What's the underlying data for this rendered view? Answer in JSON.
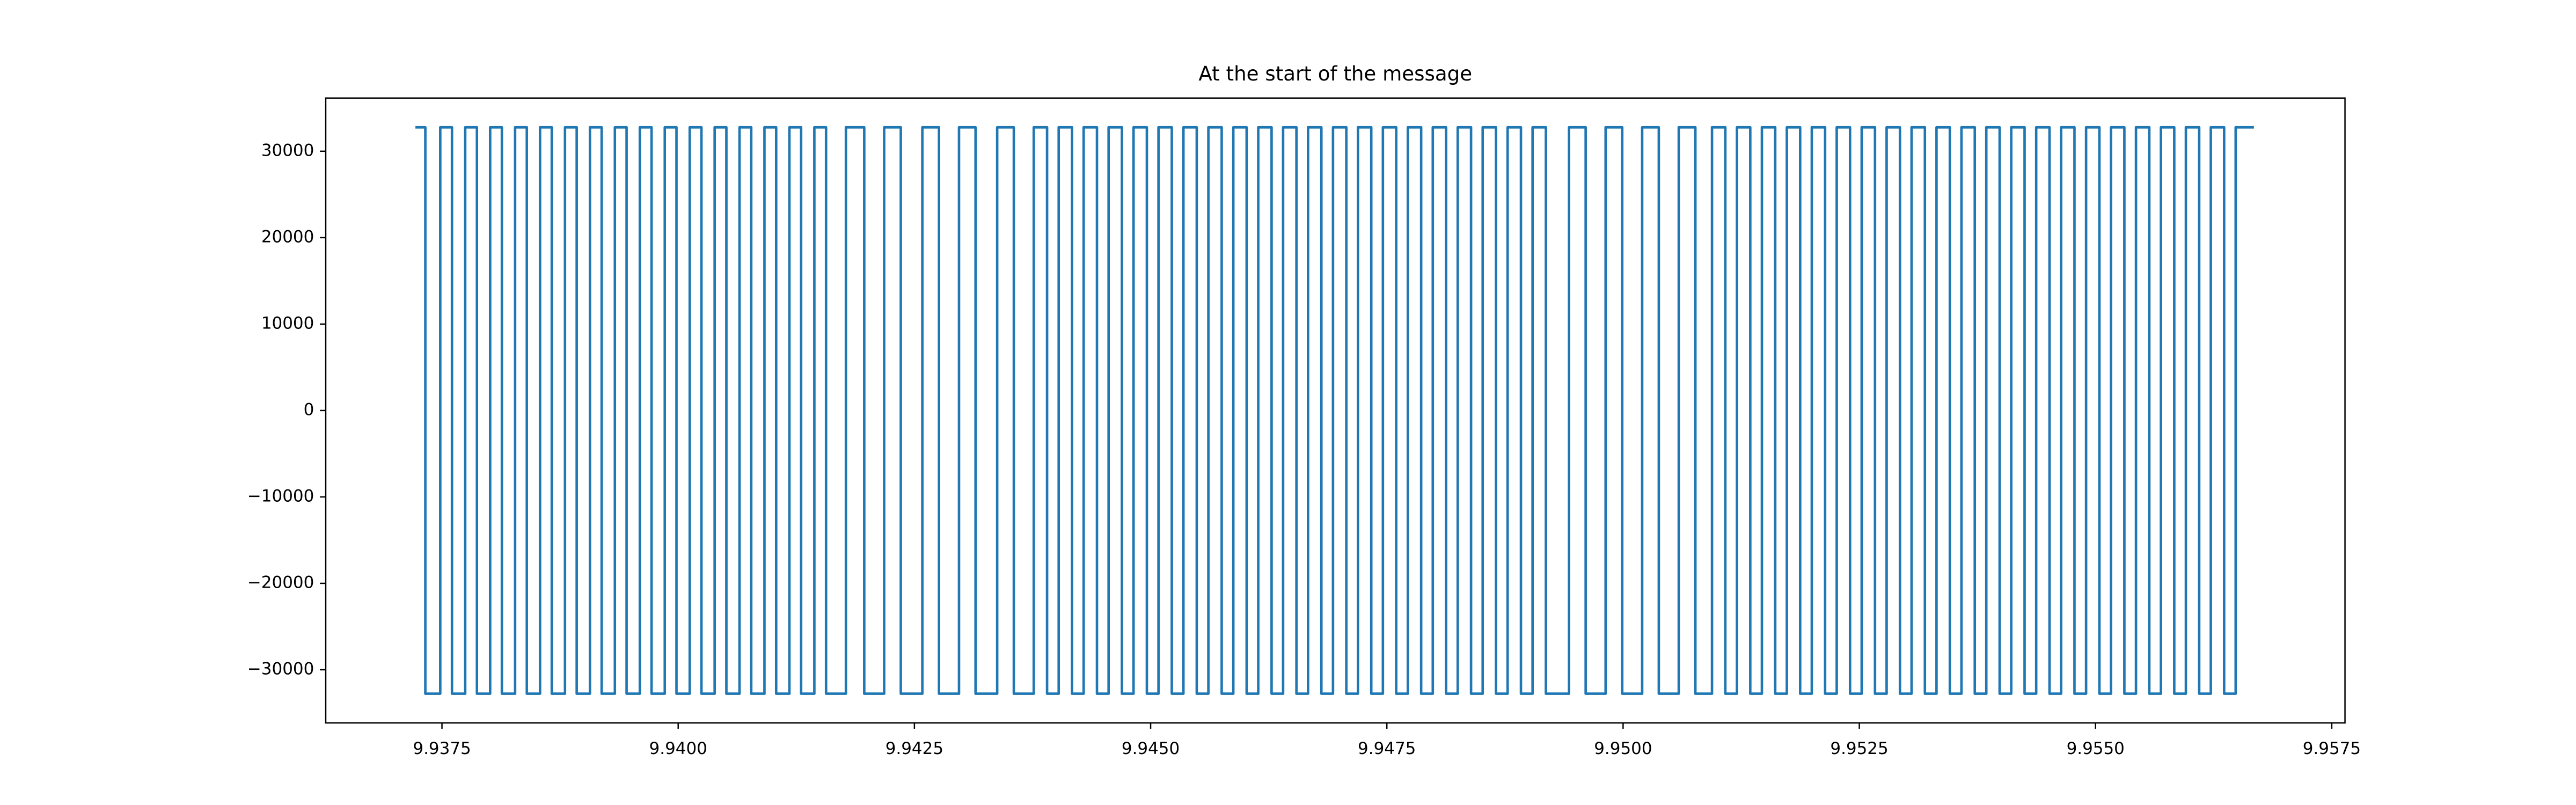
{
  "chart_data": {
    "type": "line",
    "title": "At the start of the message",
    "drawstyle": "steps-post",
    "xlim": [
      9.93627,
      9.95764
    ],
    "ylim": [
      -36154,
      36154
    ],
    "xticks": [
      9.9375,
      {
        "value": 9.94,
        "label": "9.9400"
      },
      9.9425,
      {
        "value": 9.945,
        "label": "9.9450"
      },
      9.9475,
      {
        "value": 9.95,
        "label": "9.9500"
      },
      9.9525,
      {
        "value": 9.955,
        "label": "9.9550"
      },
      9.9575
    ],
    "yticks": [
      {
        "value": -30000,
        "label": "−30000"
      },
      {
        "value": -20000,
        "label": "−20000"
      },
      {
        "value": -10000,
        "label": "−10000"
      },
      0,
      10000,
      20000,
      30000
    ],
    "grid": false,
    "series": [
      {
        "color": "#1f77b4",
        "x": [
          9.937219,
          9.937324,
          9.937482,
          9.937606,
          9.937746,
          9.93787,
          9.93801,
          9.938134,
          9.938274,
          9.938398,
          9.938538,
          9.938662,
          9.938802,
          9.938926,
          9.939066,
          9.93919,
          9.93933,
          9.939454,
          9.939594,
          9.939718,
          9.939858,
          9.939982,
          9.940122,
          9.940246,
          9.940386,
          9.94051,
          9.940649,
          9.940773,
          9.940913,
          9.941037,
          9.941177,
          9.941301,
          9.941441,
          9.941565,
          9.941775,
          9.941969,
          9.94218,
          9.942356,
          9.942584,
          9.94276,
          9.942972,
          9.943147,
          9.943376,
          9.943552,
          9.943763,
          9.943904,
          9.944027,
          9.944168,
          9.944291,
          9.944432,
          9.944555,
          9.944696,
          9.944819,
          9.94496,
          9.945083,
          9.945224,
          9.945347,
          9.945488,
          9.945611,
          9.945752,
          9.945875,
          9.946016,
          9.946139,
          9.94628,
          9.946402,
          9.946543,
          9.946666,
          9.946807,
          9.94693,
          9.947071,
          9.947194,
          9.947335,
          9.947458,
          9.947599,
          9.947722,
          9.947863,
          9.947986,
          9.948127,
          9.94825,
          9.948391,
          9.948514,
          9.948655,
          9.948778,
          9.948919,
          9.949042,
          9.949183,
          9.949428,
          9.949604,
          9.949815,
          9.949991,
          9.950202,
          9.950378,
          9.950589,
          9.950765,
          9.950941,
          9.951082,
          9.951205,
          9.951346,
          9.951469,
          9.95161,
          9.951733,
          9.951874,
          9.951997,
          9.952138,
          9.952261,
          9.952402,
          9.952525,
          9.952666,
          9.952789,
          9.95293,
          9.953053,
          9.953194,
          9.953317,
          9.953458,
          9.953581,
          9.953722,
          9.953844,
          9.953985,
          9.954108,
          9.954249,
          9.954372,
          9.954513,
          9.954636,
          9.954777,
          9.9549,
          9.955041,
          9.955164,
          9.955305,
          9.955428,
          9.955569,
          9.955692,
          9.955833,
          9.955956,
          9.956097,
          9.95622,
          9.956361,
          9.956483,
          9.956676
        ],
        "values": [
          32767,
          -32768,
          32767,
          -32768,
          32767,
          -32768,
          32767,
          -32768,
          32767,
          -32768,
          32767,
          -32768,
          32767,
          -32768,
          32767,
          -32768,
          32767,
          -32768,
          32767,
          -32768,
          32767,
          -32768,
          32767,
          -32768,
          32767,
          -32768,
          32767,
          -32768,
          32767,
          -32768,
          32767,
          -32768,
          32767,
          -32768,
          32767,
          -32768,
          32767,
          -32768,
          32767,
          -32768,
          32767,
          -32768,
          32767,
          -32768,
          32767,
          -32768,
          32767,
          -32768,
          32767,
          -32768,
          32767,
          -32768,
          32767,
          -32768,
          32767,
          -32768,
          32767,
          -32768,
          32767,
          -32768,
          32767,
          -32768,
          32767,
          -32768,
          32767,
          -32768,
          32767,
          -32768,
          32767,
          -32768,
          32767,
          -32768,
          32767,
          -32768,
          32767,
          -32768,
          32767,
          -32768,
          32767,
          -32768,
          32767,
          -32768,
          32767,
          -32768,
          32767,
          -32768,
          32767,
          -32768,
          32767,
          -32768,
          32767,
          -32768,
          32767,
          -32768,
          32767,
          -32768,
          32767,
          -32768,
          32767,
          -32768,
          32767,
          -32768,
          32767,
          -32768,
          32767,
          -32768,
          32767,
          -32768,
          32767,
          -32768,
          32767,
          -32768,
          32767,
          -32768,
          32767,
          -32768,
          32767,
          -32768,
          32767,
          -32768,
          32767,
          -32768,
          32767,
          -32768,
          32767,
          -32768,
          32767,
          -32768,
          32767,
          -32768,
          32767,
          -32768,
          32767,
          -32768,
          32767,
          -32768,
          32767,
          32767
        ]
      }
    ]
  }
}
